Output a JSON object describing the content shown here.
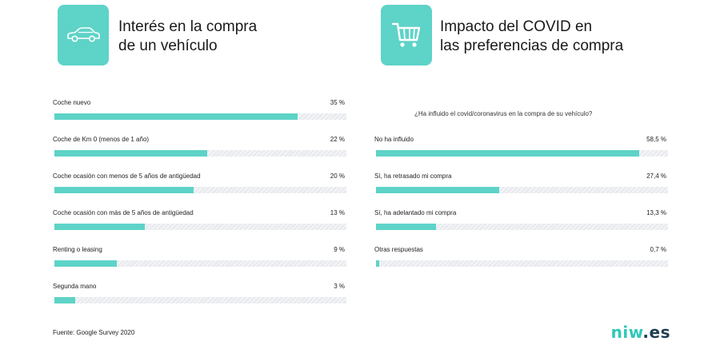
{
  "left": {
    "title_line1": "Interés en la compra",
    "title_line2": "de un vehículo",
    "icon": "car-icon"
  },
  "right": {
    "title_line1": "Impacto del COVID en",
    "title_line2": "las preferencias de compra",
    "icon": "shopping-cart-icon",
    "question": "¿Ha influido el covid/coronavirus en la compra de su vehículo?"
  },
  "colors": {
    "accent": "#5ed3c7",
    "track": "#e9ebef",
    "brand_teal": "#2fc8b9",
    "brand_dark": "#1f3d54"
  },
  "chart_data": [
    {
      "type": "bar",
      "orientation": "horizontal",
      "title": "Interés en la compra de un vehículo",
      "categories": [
        "Coche nuevo",
        "Coche de Km 0 (menos de 1 año)",
        "Coche ocasión con menos de 5 años de antigüedad",
        "Coche ocasión con más de 5 años de antigüedad",
        "Renting o leasing",
        "Segunda mano"
      ],
      "values": [
        35,
        22,
        20,
        13,
        9,
        3
      ],
      "value_labels": [
        "35 %",
        "22 %",
        "20 %",
        "13 %",
        "9 %",
        "3 %"
      ],
      "unit": "%",
      "grid": false
    },
    {
      "type": "bar",
      "orientation": "horizontal",
      "title": "Impacto del COVID en las preferencias de compra",
      "subtitle": "¿Ha influido el covid/coronavirus en la compra de su vehículo?",
      "categories": [
        "No ha influido",
        "Sí, ha retrasado mi compra",
        "Sí, ha adelantado mi compra",
        "Otras respuestas"
      ],
      "values": [
        58.5,
        27.4,
        13.3,
        0.7
      ],
      "value_labels": [
        "58,5 %",
        "27,4 %",
        "13,3 %",
        "0,7 %"
      ],
      "unit": "%",
      "grid": false
    }
  ],
  "footer": {
    "source": "Fuente: Google Survey 2020",
    "brand_part1": "niw",
    "brand_part2": ".es"
  }
}
